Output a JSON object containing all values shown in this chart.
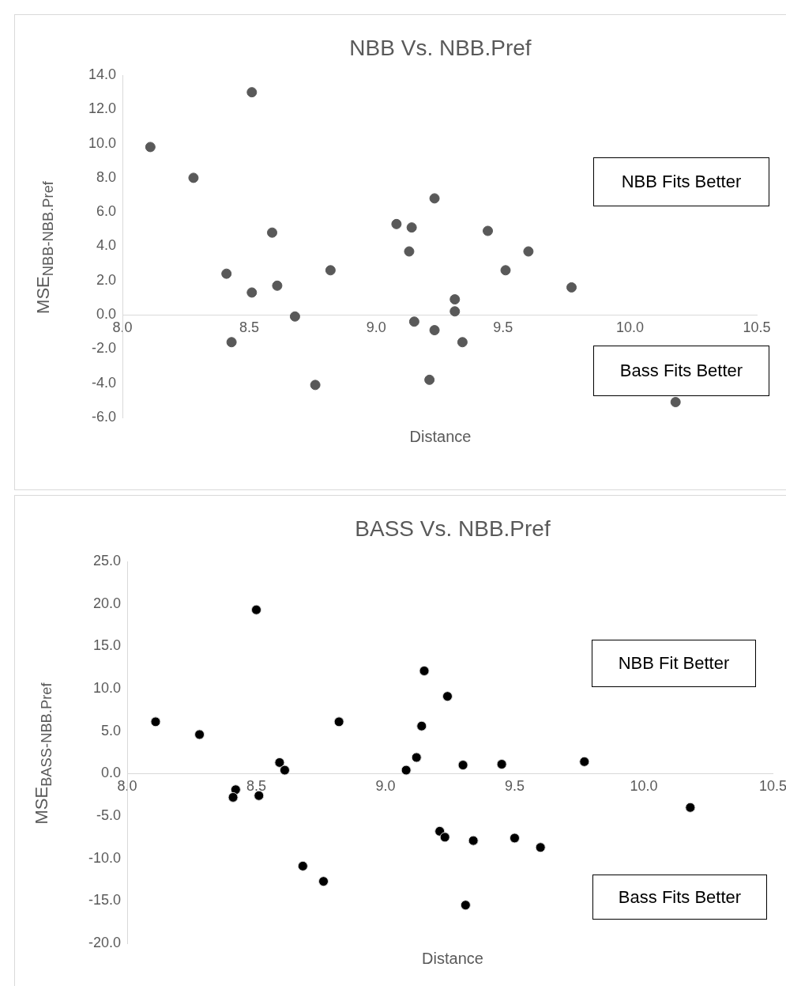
{
  "chart_data": [
    {
      "type": "scatter",
      "title": "NBB Vs. NBB.Pref",
      "xlabel": "Distance",
      "ylabel": "MSE$_{NBB-NBB.Pref}$",
      "annotations": [
        "NBB Fits Better",
        "Bass Fits Better"
      ],
      "grid": false,
      "legend": false,
      "marker": "circle",
      "xlim": [
        8,
        10.5
      ],
      "xticks": [
        {
          "value": 8,
          "label": "8.0"
        },
        {
          "value": 8.5,
          "label": "8.5"
        },
        {
          "value": 9,
          "label": "9.0"
        },
        {
          "value": 9.5,
          "label": "9.5"
        },
        {
          "value": 10,
          "label": "10.0"
        },
        {
          "value": 10.5,
          "label": "10.5"
        }
      ],
      "ylim": [
        -6,
        14
      ],
      "yticks": [
        {
          "value": -6,
          "label": "-6.0"
        },
        {
          "value": -4,
          "label": "-4.0"
        },
        {
          "value": -2,
          "label": "-2.0"
        },
        {
          "value": 0,
          "label": "0.0"
        },
        {
          "value": 2,
          "label": "2.0"
        },
        {
          "value": 4,
          "label": "4.0"
        },
        {
          "value": 6,
          "label": "6.0"
        },
        {
          "value": 8,
          "label": "8.0"
        },
        {
          "value": 10,
          "label": "10.0"
        },
        {
          "value": 12,
          "label": "12.0"
        },
        {
          "value": 14,
          "label": "14.0"
        }
      ],
      "x": [
        8.11,
        8.28,
        8.51,
        8.41,
        8.43,
        8.51,
        8.59,
        8.61,
        8.68,
        8.76,
        8.82,
        9.08,
        9.14,
        9.13,
        9.15,
        9.23,
        9.21,
        9.23,
        9.31,
        9.31,
        9.34,
        9.44,
        9.51,
        9.6,
        9.77,
        10.18
      ],
      "series": [
        {
          "color": "#595959",
          "values": [
            9.8,
            8.0,
            13.0,
            2.4,
            -1.6,
            1.3,
            4.8,
            1.7,
            -0.1,
            -4.1,
            2.6,
            5.3,
            5.1,
            3.7,
            -0.4,
            6.8,
            -3.8,
            -0.9,
            0.9,
            0.2,
            -1.6,
            4.9,
            2.6,
            3.7,
            1.6,
            -5.1
          ]
        }
      ]
    },
    {
      "type": "scatter",
      "title": "BASS Vs. NBB.Pref",
      "xlabel": "Distance",
      "ylabel": "MSE$_{BASS-NBB.Pref}$",
      "annotations": [
        "NBB Fit Better",
        "Bass Fits Better"
      ],
      "grid": false,
      "legend": false,
      "marker": "circle",
      "xlim": [
        8,
        10.5
      ],
      "xticks": [
        {
          "value": 8,
          "label": "8.0"
        },
        {
          "value": 8.5,
          "label": "8.5"
        },
        {
          "value": 9,
          "label": "9.0"
        },
        {
          "value": 9.5,
          "label": "9.5"
        },
        {
          "value": 10,
          "label": "10.0"
        },
        {
          "value": 10.5,
          "label": "10.5"
        }
      ],
      "ylim": [
        -20,
        25
      ],
      "yticks": [
        {
          "value": -20,
          "label": "-20.0"
        },
        {
          "value": -15,
          "label": "-15.0"
        },
        {
          "value": -10,
          "label": "-10.0"
        },
        {
          "value": -5,
          "label": "-5.0"
        },
        {
          "value": 0,
          "label": "0.0"
        },
        {
          "value": 5,
          "label": "5.0"
        },
        {
          "value": 10,
          "label": "10.0"
        },
        {
          "value": 15,
          "label": "15.0"
        },
        {
          "value": 20,
          "label": "20.0"
        },
        {
          "value": 25,
          "label": "25.0"
        }
      ],
      "x": [
        8.11,
        8.28,
        8.5,
        8.42,
        8.41,
        8.51,
        8.59,
        8.61,
        8.68,
        8.76,
        8.82,
        9.08,
        9.12,
        9.14,
        9.15,
        9.24,
        9.21,
        9.23,
        9.3,
        9.31,
        9.34,
        9.45,
        9.5,
        9.6,
        9.77,
        10.18
      ],
      "series": [
        {
          "color": "#000000",
          "values": [
            6.1,
            4.6,
            19.3,
            -1.9,
            -2.8,
            -2.6,
            1.3,
            0.4,
            -10.9,
            -12.7,
            6.1,
            0.4,
            1.9,
            5.6,
            12.1,
            9.1,
            -6.8,
            -7.5,
            1.0,
            -15.5,
            -7.9,
            1.1,
            -7.6,
            -8.7,
            1.4,
            -4.0
          ]
        }
      ]
    }
  ]
}
